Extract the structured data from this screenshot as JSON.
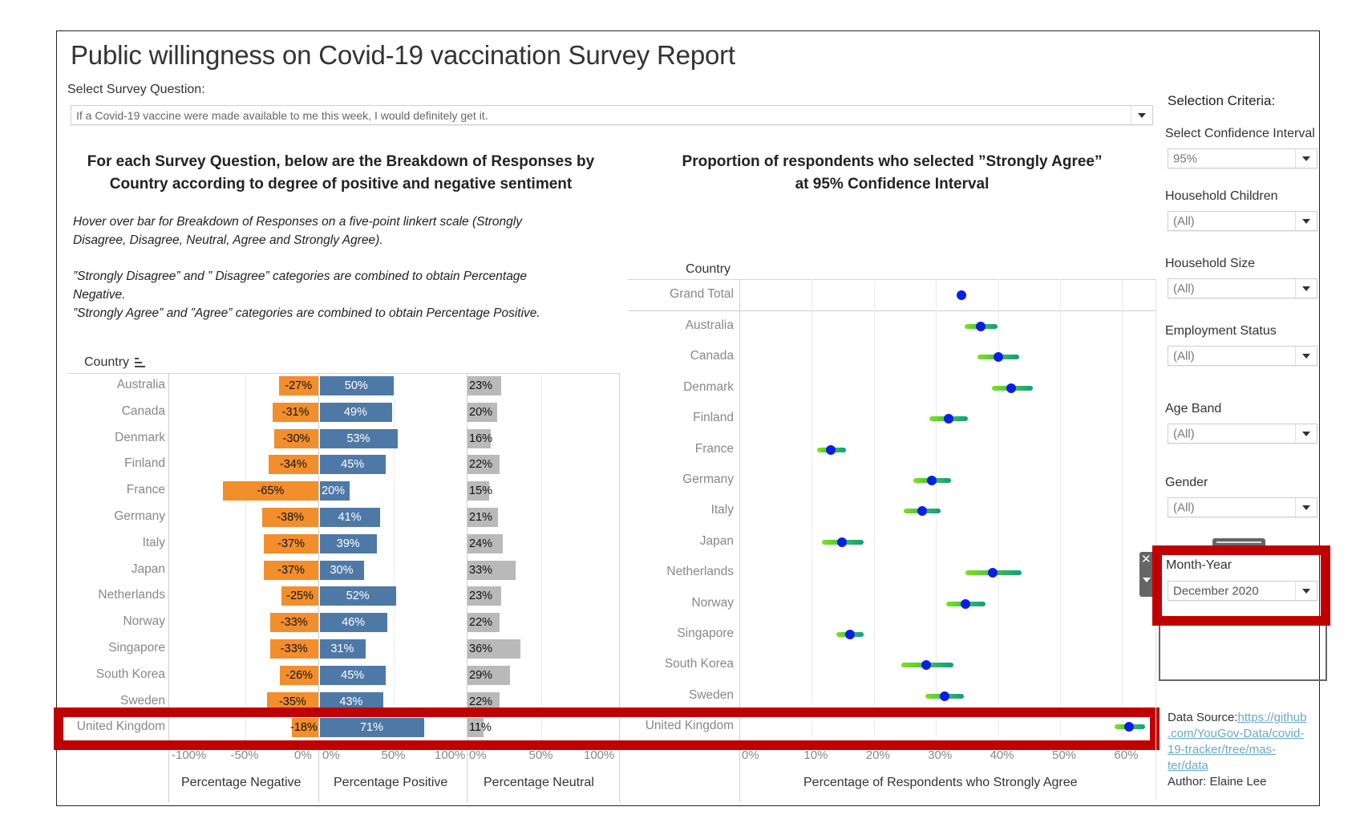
{
  "page": {
    "title": "Public willingness on Covid-19 vaccination Survey Report",
    "survey_question_label": "Select Survey Question:",
    "survey_question_value": "If a Covid-19 vaccine were made available to me this week, I would definitely get it."
  },
  "left_panel": {
    "heading_line1": "For each Survey Question, below are the Breakdown of Responses by",
    "heading_line2": "Country according to degree of positive and negative sentiment",
    "notes": [
      "Hover over bar for Breakdown of Responses  on a five-point linkert scale (Strongly",
      "Disagree, Disagree, Neutral, Agree and Strongly Agree).",
      "”Strongly Disagree” and ” Disagree” categories are combined to obtain Percentage",
      "Negative.",
      "”Strongly Agree” and ”Agree” categories are combined to obtain Percentage Positive."
    ]
  },
  "right_panel": {
    "heading_line1": "Proportion of respondents who selected ”Strongly Agree”",
    "heading_line2": "at 95% Confidence Interval"
  },
  "sidebar": {
    "title": "Selection Criteria:",
    "filters": [
      {
        "label": "Select Confidence Interval",
        "value": "95%"
      },
      {
        "label": "Household Children",
        "value": "(All)"
      },
      {
        "label": "Household Size",
        "value": "(All)"
      },
      {
        "label": "Employment Status",
        "value": "(All)"
      },
      {
        "label": "Age Band",
        "value": "(All)"
      },
      {
        "label": "Gender",
        "value": "(All)"
      },
      {
        "label": "Month-Year",
        "value": "December 2020"
      }
    ],
    "data_source_label": "Data Source:",
    "data_source_link_lines": [
      "https://github",
      ".com/YouGov-Data/covid-",
      "19-tracker/tree/mas-",
      "ter/data"
    ],
    "author": "Author: Elaine Lee"
  },
  "highlight_color": "#c00000",
  "chart_data": [
    {
      "type": "bar",
      "title": "Breakdown of Responses by Country",
      "row_header": "Country",
      "categories": [
        "Australia",
        "Canada",
        "Denmark",
        "Finland",
        "France",
        "Germany",
        "Italy",
        "Japan",
        "Netherlands",
        "Norway",
        "Singapore",
        "South Korea",
        "Sweden",
        "United Kingdom"
      ],
      "series": [
        {
          "name": "Percentage Negative",
          "color": "#f28e2b",
          "values": [
            -27,
            -31,
            -30,
            -34,
            -65,
            -38,
            -37,
            -37,
            -25,
            -33,
            -33,
            -26,
            -35,
            -18
          ],
          "ticks": [
            "-100%",
            "-50%",
            "0%"
          ],
          "range": [
            -100,
            0
          ]
        },
        {
          "name": "Percentage Positive",
          "color": "#4e79a7",
          "values": [
            50,
            49,
            53,
            45,
            20,
            41,
            39,
            30,
            52,
            46,
            31,
            45,
            43,
            71
          ],
          "ticks": [
            "0%",
            "50%",
            "100%"
          ],
          "range": [
            0,
            100
          ]
        },
        {
          "name": "Percentage Neutral",
          "color": "#b9b9b9",
          "values": [
            23,
            20,
            16,
            22,
            15,
            21,
            24,
            33,
            23,
            22,
            36,
            29,
            22,
            11
          ],
          "ticks": [
            "0%",
            "50%",
            "100%"
          ],
          "range": [
            0,
            100
          ]
        }
      ],
      "highlighted_category": "United Kingdom"
    },
    {
      "type": "scatter",
      "title": "Proportion of respondents who selected ”Strongly Agree” at 95% Confidence Interval",
      "row_header": "Country",
      "xlabel": "Percentage of Respondents who Strongly Agree",
      "xlim": [
        0,
        65
      ],
      "xticks": [
        "0%",
        "10%",
        "20%",
        "30%",
        "40%",
        "50%",
        "60%"
      ],
      "categories": [
        "Grand Total",
        "Australia",
        "Canada",
        "Denmark",
        "Finland",
        "France",
        "Germany",
        "Italy",
        "Japan",
        "Netherlands",
        "Norway",
        "Singapore",
        "South Korea",
        "Sweden",
        "United Kingdom"
      ],
      "point": [
        34.1,
        37.2,
        40.0,
        42.1,
        32.1,
        13.0,
        29.3,
        27.8,
        14.9,
        39.2,
        34.7,
        16.1,
        28.4,
        31.4,
        61.1
      ],
      "ci_low": [
        33.6,
        34.6,
        36.7,
        39.0,
        29.0,
        10.9,
        26.4,
        24.8,
        11.6,
        34.8,
        31.6,
        14.0,
        24.4,
        28.3,
        58.8
      ],
      "ci_high": [
        34.6,
        39.9,
        43.4,
        45.6,
        35.2,
        15.5,
        32.4,
        30.8,
        18.3,
        43.8,
        38.0,
        18.3,
        32.8,
        34.5,
        63.7
      ],
      "point_color": "#0a1fe6",
      "ci_colors": [
        "#7ce31a",
        "#0c9d83"
      ],
      "highlighted_category": "United Kingdom"
    }
  ]
}
